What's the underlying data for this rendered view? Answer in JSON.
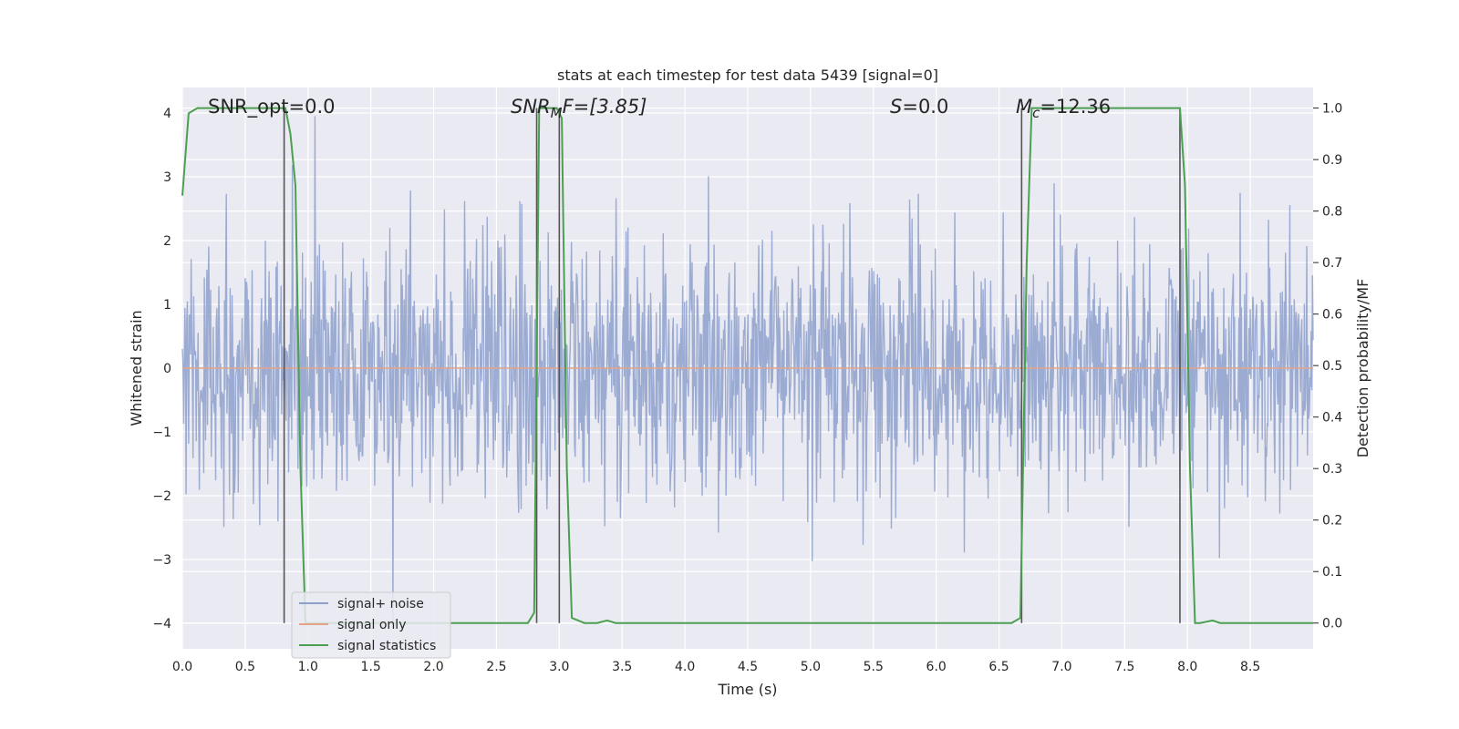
{
  "chart_data": {
    "type": "line",
    "title": "stats at each timestep for test data 5439 [signal=0]",
    "xlabel": "Time (s)",
    "ylabel": "Whitened strain",
    "ylabel_right": "Detection probability/MF",
    "xlim": [
      0.0,
      9.0
    ],
    "ylim": [
      -4.4,
      4.4
    ],
    "ylim_right": [
      -0.05,
      1.04
    ],
    "x_ticks": [
      "0.0",
      "0.5",
      "1.0",
      "1.5",
      "2.0",
      "2.5",
      "3.0",
      "3.5",
      "4.0",
      "4.5",
      "5.0",
      "5.5",
      "6.0",
      "6.5",
      "7.0",
      "7.5",
      "8.0",
      "8.5"
    ],
    "x_tick_values": [
      0.0,
      0.5,
      1.0,
      1.5,
      2.0,
      2.5,
      3.0,
      3.5,
      4.0,
      4.5,
      5.0,
      5.5,
      6.0,
      6.5,
      7.0,
      7.5,
      8.0,
      8.5
    ],
    "y_ticks": [
      "4",
      "3",
      "2",
      "1",
      "0",
      "−1",
      "−2",
      "−3",
      "−4"
    ],
    "y_tick_values": [
      4,
      3,
      2,
      1,
      0,
      -1,
      -2,
      -3,
      -4
    ],
    "y_right_ticks": [
      "1.0",
      "0.9",
      "0.8",
      "0.7",
      "0.6",
      "0.5",
      "0.4",
      "0.3",
      "0.2",
      "0.1",
      "0.0"
    ],
    "y_right_tick_values": [
      1.0,
      0.9,
      0.8,
      0.7,
      0.6,
      0.5,
      0.4,
      0.3,
      0.2,
      0.1,
      0.0
    ],
    "annotations": {
      "snr_opt": "SNR_opt=0.0",
      "snr_mf_main": "SNR",
      "snr_mf_sub": "M",
      "snr_mf_rest": "F=[3.85]",
      "s_main": "S",
      "s_rest": "=0.0",
      "mc_main": "M",
      "mc_sub": "c",
      "mc_rest": "=12.36"
    },
    "series": [
      {
        "name": "signal+ noise",
        "color": "#8da0cb",
        "description": "whitened strain noise, approx amplitude within ±4",
        "envelope_max": 3.95,
        "envelope_min": -4.0
      },
      {
        "name": "signal only",
        "color": "#e5a487",
        "y_constant": 0.0
      },
      {
        "name": "signal statistics",
        "color": "#4c9f50",
        "axis": "right",
        "x": [
          0.0,
          0.05,
          0.12,
          0.2,
          0.5,
          0.78,
          0.82,
          0.86,
          0.9,
          0.94,
          0.98,
          1.02,
          1.2,
          2.0,
          2.75,
          2.8,
          2.84,
          2.88,
          2.92,
          2.98,
          3.02,
          3.06,
          3.1,
          3.2,
          3.3,
          3.38,
          3.45,
          3.6,
          4.0,
          5.0,
          6.0,
          6.6,
          6.67,
          6.72,
          6.76,
          6.8,
          7.0,
          7.5,
          7.9,
          7.94,
          7.98,
          8.02,
          8.06,
          8.1,
          8.2,
          8.26,
          8.35,
          8.6,
          9.0
        ],
        "y": [
          0.83,
          0.99,
          1.0,
          1.0,
          1.0,
          1.0,
          1.0,
          0.95,
          0.85,
          0.3,
          0.0,
          0.0,
          0.0,
          0.0,
          0.0,
          0.02,
          1.0,
          1.0,
          1.0,
          1.0,
          0.98,
          0.3,
          0.01,
          0.0,
          0.0,
          0.005,
          0.0,
          0.0,
          0.0,
          0.0,
          0.0,
          0.0,
          0.01,
          0.7,
          1.0,
          1.0,
          1.0,
          1.0,
          1.0,
          1.0,
          0.85,
          0.3,
          0.0,
          0.0,
          0.005,
          0.0,
          0.0,
          0.0,
          0.0
        ]
      }
    ],
    "vertical_lines_x": [
      0.81,
      2.82,
      3.0,
      6.68,
      7.94
    ],
    "legend": {
      "location": "lower-left",
      "entries": [
        "signal+ noise",
        "signal only",
        "signal statistics"
      ]
    },
    "colors": {
      "background": "#eaeaf2",
      "grid": "#ffffff",
      "noise": "#8da0cb",
      "signal": "#e5a487",
      "stats": "#4c9f50",
      "vline": "#555555"
    }
  }
}
